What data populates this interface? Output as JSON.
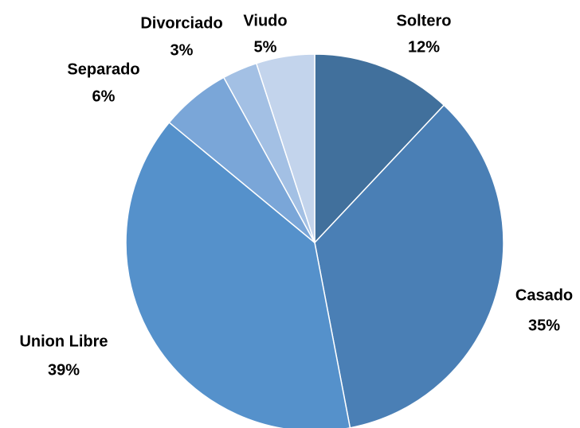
{
  "chart_data": {
    "type": "pie",
    "categories": [
      "Soltero",
      "Casado",
      "Union Libre",
      "Separado",
      "Divorciado",
      "Viudo"
    ],
    "values": [
      12,
      35,
      39,
      6,
      3,
      5
    ],
    "value_labels": [
      "12%",
      "35%",
      "39%",
      "6%",
      "3%",
      "5%"
    ],
    "colors": [
      "#41709c",
      "#4a7fb5",
      "#5591cb",
      "#7aa6d8",
      "#a3c0e4",
      "#c3d4ec"
    ]
  }
}
